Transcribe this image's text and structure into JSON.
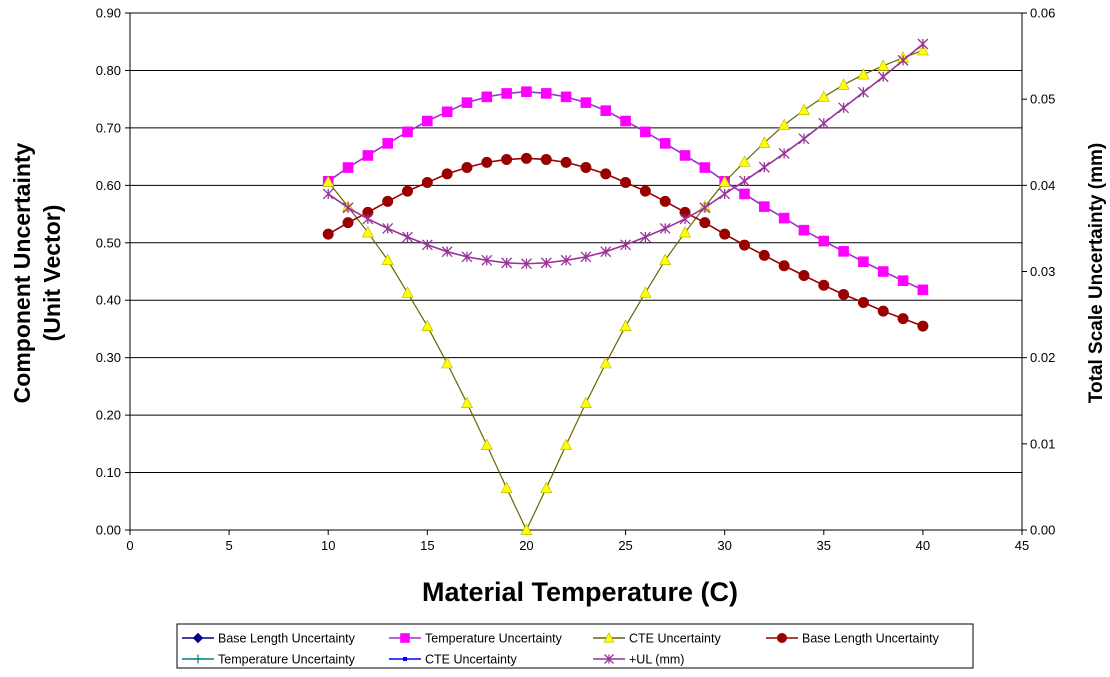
{
  "chart_data": {
    "type": "line",
    "title": "",
    "xlabel": "Material Temperature (C)",
    "ylabel": "Component Uncertainty\n(Unit Vector)",
    "y2label": "Total Scale Uncertainty (mm)",
    "xlim": [
      0,
      45
    ],
    "ylim": [
      0,
      0.9
    ],
    "y2lim": [
      0,
      0.06
    ],
    "x_ticks": [
      0,
      5,
      10,
      15,
      20,
      25,
      30,
      35,
      40,
      45
    ],
    "y_ticks": [
      "0.00",
      "0.10",
      "0.20",
      "0.30",
      "0.40",
      "0.50",
      "0.60",
      "0.70",
      "0.80",
      "0.90"
    ],
    "y2_ticks": [
      "0.00",
      "0.01",
      "0.02",
      "0.03",
      "0.04",
      "0.05",
      "0.06"
    ],
    "grid": "horizontal",
    "legend_position": "bottom",
    "x": [
      10,
      11,
      12,
      13,
      14,
      15,
      16,
      17,
      18,
      19,
      20,
      21,
      22,
      23,
      24,
      25,
      26,
      27,
      28,
      29,
      30,
      31,
      32,
      33,
      34,
      35,
      36,
      37,
      38,
      39,
      40
    ],
    "series": [
      {
        "name": "Temperature Uncertainty",
        "axis": "left",
        "color": "#ff00ff",
        "line_color": "#9933cc",
        "marker": "square",
        "values": [
          0.607,
          0.631,
          0.652,
          0.673,
          0.693,
          0.712,
          0.728,
          0.744,
          0.754,
          0.76,
          0.763,
          0.76,
          0.754,
          0.744,
          0.73,
          0.712,
          0.693,
          0.673,
          0.652,
          0.631,
          0.607,
          0.585,
          0.563,
          0.543,
          0.522,
          0.503,
          0.485,
          0.467,
          0.45,
          0.434,
          0.418
        ]
      },
      {
        "name": "CTE Uncertainty",
        "axis": "left",
        "color": "#ffff00",
        "line_color": "#666600",
        "marker": "triangle",
        "values": [
          0.606,
          0.563,
          0.518,
          0.47,
          0.413,
          0.355,
          0.29,
          0.221,
          0.148,
          0.073,
          0.0,
          0.073,
          0.148,
          0.221,
          0.29,
          0.355,
          0.413,
          0.47,
          0.518,
          0.563,
          0.606,
          0.641,
          0.674,
          0.705,
          0.731,
          0.754,
          0.775,
          0.793,
          0.808,
          0.822,
          0.835
        ]
      },
      {
        "name": "Base Length Uncertainty",
        "axis": "left",
        "color": "#990000",
        "line_color": "#990000",
        "marker": "circle",
        "values": [
          0.515,
          0.535,
          0.553,
          0.572,
          0.59,
          0.605,
          0.62,
          0.631,
          0.64,
          0.645,
          0.647,
          0.645,
          0.64,
          0.631,
          0.62,
          0.605,
          0.59,
          0.572,
          0.553,
          0.535,
          0.515,
          0.496,
          0.478,
          0.46,
          0.443,
          0.426,
          0.41,
          0.396,
          0.381,
          0.368,
          0.355
        ]
      },
      {
        "name": "+UL (mm)",
        "axis": "right",
        "color": "#993399",
        "line_color": "#993399",
        "marker": "star",
        "values": [
          0.039,
          0.0374,
          0.0361,
          0.035,
          0.034,
          0.0331,
          0.0323,
          0.0317,
          0.0313,
          0.031,
          0.0309,
          0.031,
          0.0313,
          0.0317,
          0.0323,
          0.0331,
          0.034,
          0.035,
          0.0361,
          0.0374,
          0.039,
          0.0405,
          0.0421,
          0.0437,
          0.0454,
          0.0472,
          0.049,
          0.0508,
          0.0526,
          0.0545,
          0.0564
        ]
      }
    ]
  },
  "legend": {
    "entries": [
      {
        "label": "Base Length Uncertainty",
        "marker": "diamond",
        "color": "#000080"
      },
      {
        "label": "Temperature Uncertainty",
        "marker": "square",
        "color": "#ff00ff"
      },
      {
        "label": "CTE Uncertainty",
        "marker": "triangle",
        "color": "#ffff00"
      },
      {
        "label": "Base Length Uncertainty",
        "marker": "circle",
        "color": "#990000"
      },
      {
        "label": "Temperature Uncertainty",
        "marker": "plus",
        "color": "#008080"
      },
      {
        "label": "CTE Uncertainty",
        "marker": "dot",
        "color": "#0000ff"
      },
      {
        "label": "+UL (mm)",
        "marker": "star",
        "color": "#993399"
      }
    ]
  }
}
